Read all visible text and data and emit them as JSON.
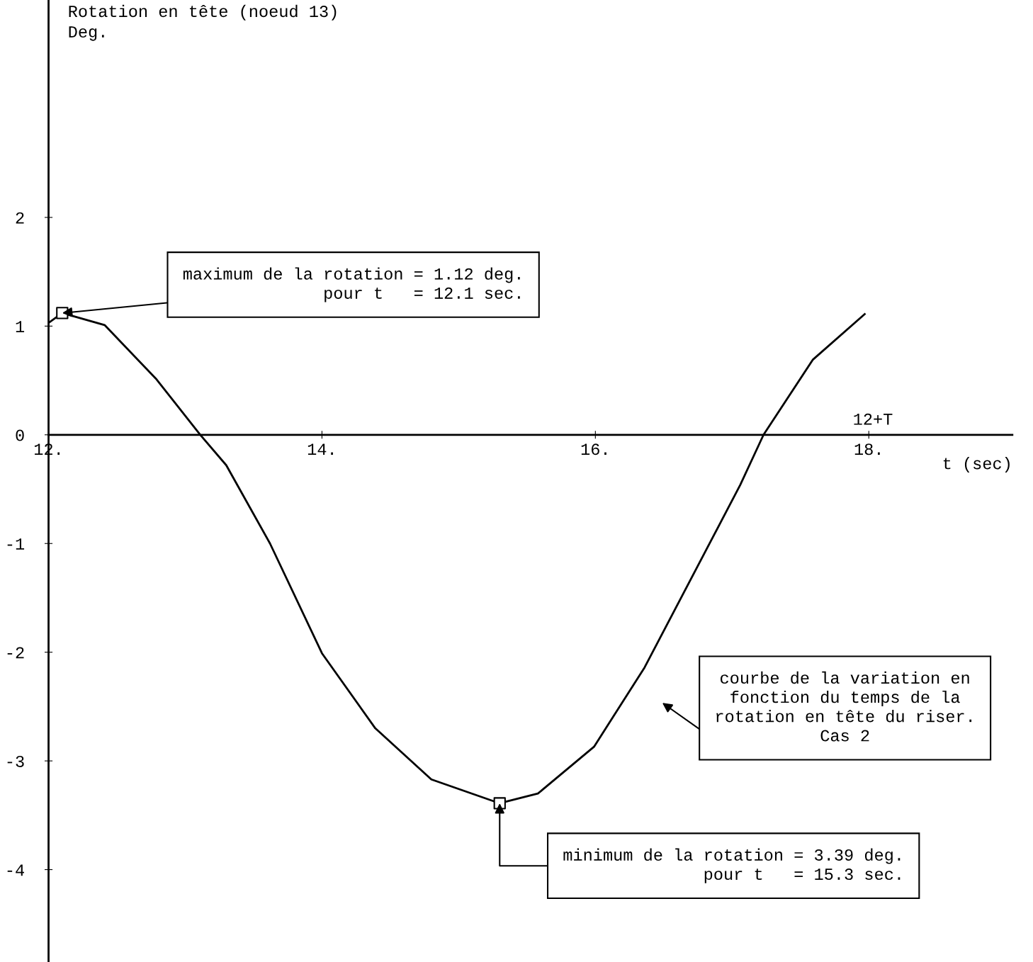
{
  "chart_data": {
    "type": "line",
    "xlabel": "t (sec)",
    "ylabel": "Rotation en tête (noeud 13)\nDeg.",
    "xlim": [
      12,
      19.05
    ],
    "ylim": [
      -4.85,
      4.0
    ],
    "xticks": [
      {
        "value": 12,
        "label": "12."
      },
      {
        "value": 14,
        "label": "14."
      },
      {
        "value": 16,
        "label": "16."
      },
      {
        "value": 18,
        "label": "18."
      }
    ],
    "yticks": [
      {
        "value": -4,
        "label": "-4"
      },
      {
        "value": -3,
        "label": "-3"
      },
      {
        "value": -2,
        "label": "-2"
      },
      {
        "value": -1,
        "label": "-1"
      },
      0,
      1,
      2
    ],
    "grid": false,
    "legend": false,
    "series": [
      {
        "color": "#000000",
        "marker": "none",
        "line_style": "solid",
        "x": [
          12.0,
          12.1,
          12.41,
          12.79,
          13.11,
          13.3,
          13.62,
          14.0,
          14.39,
          14.8,
          15.3,
          15.58,
          15.99,
          16.36,
          17.06,
          17.23,
          17.59,
          17.97
        ],
        "values": [
          1.03,
          1.12,
          1.01,
          0.51,
          0.0,
          -0.28,
          -1.0,
          -2.01,
          -2.7,
          -3.17,
          -3.39,
          -3.3,
          -2.87,
          -2.14,
          -0.46,
          0.0,
          0.69,
          1.11
        ]
      },
      {
        "type": "scatter",
        "color": "#000000",
        "marker": "square",
        "x": [
          12.1,
          15.3
        ],
        "values": [
          1.12,
          -3.39
        ]
      }
    ],
    "annotations": [
      {
        "text": "maximum de la rotation = 1.12 deg.\npour t   = 12.1 sec.",
        "x": 12.1,
        "y": 1.12
      },
      {
        "text": "minimum de la rotation = 3.39 deg.\npour t   = 15.3 sec.",
        "x": 15.3,
        "y": -3.39
      },
      "courbe de la variation en\nfonction du temps de la\nrotation en tête du riser.\nCas 2",
      "12+T"
    ]
  }
}
